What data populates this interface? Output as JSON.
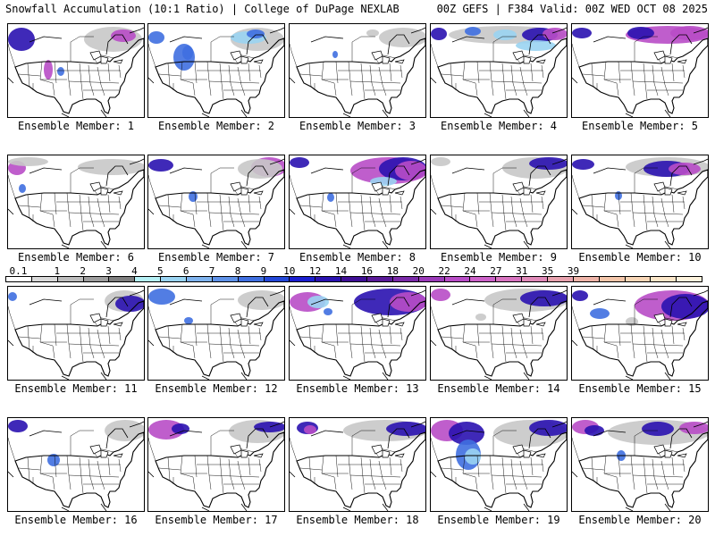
{
  "header": {
    "left": "Snowfall Accumulation (10:1 Ratio) | College of DuPage NEXLAB",
    "right": "00Z GEFS | F384 Valid: 00Z WED OCT 08 2025"
  },
  "colorbar": {
    "ticks": [
      "0.1",
      "1",
      "2",
      "3",
      "4",
      "5",
      "6",
      "7",
      "8",
      "9",
      "10",
      "12",
      "14",
      "16",
      "18",
      "20",
      "22",
      "24",
      "27",
      "31",
      "35",
      "39"
    ],
    "colors": [
      "#ffffff",
      "#d9d9d9",
      "#bdbdbd",
      "#9e9e9e",
      "#7f7f7f",
      "#b5f0f5",
      "#9ad4f2",
      "#7fb3ee",
      "#5f92e8",
      "#3f6fe0",
      "#2347d8",
      "#1b1fd0",
      "#2a12b0",
      "#3f0f95",
      "#5a1a98",
      "#7a2aa8",
      "#9a3ab8",
      "#b84cc6",
      "#cc62c8",
      "#d874c0",
      "#e08ab8",
      "#e8a2ae",
      "#efb4a8",
      "#f4c6aa",
      "#f8d6b6",
      "#fbe6c8",
      "#fdf3dd"
    ]
  },
  "panels": [
    {
      "label": "Ensemble Member: 1",
      "snow": [
        [
          "n",
          0,
          4,
          30,
          26
        ],
        [
          "p",
          40,
          40,
          10,
          22
        ],
        [
          "b",
          55,
          48,
          8,
          10
        ],
        [
          "g",
          85,
          3,
          65,
          28
        ],
        [
          "p",
          115,
          6,
          28,
          14
        ]
      ]
    },
    {
      "label": "Ensemble Member: 2",
      "snow": [
        [
          "b",
          0,
          8,
          18,
          14
        ],
        [
          "b",
          28,
          22,
          24,
          30
        ],
        [
          "b",
          38,
          24,
          12,
          16
        ],
        [
          "g",
          92,
          4,
          60,
          26
        ],
        [
          "c",
          92,
          8,
          40,
          14
        ],
        [
          "b",
          110,
          6,
          20,
          10
        ]
      ]
    },
    {
      "label": "Ensemble Member: 3",
      "snow": [
        [
          "g",
          100,
          4,
          54,
          22
        ],
        [
          "g",
          86,
          6,
          14,
          8
        ],
        [
          "b",
          48,
          30,
          6,
          8
        ]
      ]
    },
    {
      "label": "Ensemble Member: 4",
      "snow": [
        [
          "n",
          0,
          4,
          18,
          14
        ],
        [
          "g",
          20,
          2,
          130,
          20
        ],
        [
          "b",
          38,
          3,
          18,
          10
        ],
        [
          "c",
          70,
          6,
          26,
          12
        ],
        [
          "n",
          102,
          4,
          40,
          16
        ],
        [
          "p",
          125,
          4,
          28,
          14
        ],
        [
          "c",
          95,
          18,
          45,
          12
        ]
      ]
    },
    {
      "label": "Ensemble Member: 5",
      "snow": [
        [
          "n",
          0,
          4,
          22,
          12
        ],
        [
          "p",
          60,
          2,
          94,
          20
        ],
        [
          "n",
          62,
          3,
          30,
          14
        ],
        [
          "p",
          110,
          2,
          44,
          16
        ]
      ]
    },
    {
      "label": "Ensemble Member: 6",
      "snow": [
        [
          "p",
          0,
          6,
          20,
          16
        ],
        [
          "g",
          0,
          2,
          45,
          10
        ],
        [
          "b",
          12,
          32,
          8,
          10
        ],
        [
          "g",
          78,
          4,
          76,
          18
        ]
      ]
    },
    {
      "label": "Ensemble Member: 7",
      "snow": [
        [
          "n",
          0,
          4,
          28,
          14
        ],
        [
          "p",
          115,
          2,
          40,
          22
        ],
        [
          "g",
          100,
          4,
          50,
          22
        ],
        [
          "b",
          45,
          40,
          10,
          12
        ]
      ]
    },
    {
      "label": "Ensemble Member: 8",
      "snow": [
        [
          "n",
          0,
          2,
          22,
          12
        ],
        [
          "p",
          68,
          2,
          86,
          30
        ],
        [
          "n",
          100,
          2,
          54,
          26
        ],
        [
          "p",
          118,
          6,
          36,
          22
        ],
        [
          "c",
          90,
          24,
          30,
          10
        ],
        [
          "b",
          42,
          42,
          8,
          10
        ]
      ]
    },
    {
      "label": "Ensemble Member: 9",
      "snow": [
        [
          "g",
          0,
          2,
          22,
          10
        ],
        [
          "g",
          80,
          2,
          74,
          24
        ],
        [
          "n",
          110,
          2,
          44,
          14
        ]
      ]
    },
    {
      "label": "Ensemble Member: 10",
      "snow": [
        [
          "n",
          0,
          4,
          25,
          12
        ],
        [
          "g",
          60,
          2,
          94,
          22
        ],
        [
          "n",
          80,
          6,
          52,
          18
        ],
        [
          "p",
          108,
          8,
          36,
          14
        ],
        [
          "b",
          48,
          40,
          8,
          10
        ]
      ]
    },
    {
      "label": "Ensemble Member: 11",
      "snow": [
        [
          "b",
          0,
          6,
          10,
          10
        ],
        [
          "g",
          108,
          4,
          44,
          24
        ],
        [
          "n",
          120,
          10,
          34,
          18
        ]
      ]
    },
    {
      "label": "Ensemble Member: 12",
      "snow": [
        [
          "b",
          0,
          2,
          30,
          18
        ],
        [
          "g",
          100,
          4,
          54,
          22
        ],
        [
          "b",
          40,
          34,
          10,
          8
        ]
      ]
    },
    {
      "label": "Ensemble Member: 13",
      "snow": [
        [
          "p",
          0,
          6,
          40,
          22
        ],
        [
          "c",
          20,
          10,
          24,
          14
        ],
        [
          "n",
          72,
          2,
          82,
          30
        ],
        [
          "p",
          112,
          6,
          42,
          22
        ],
        [
          "b",
          38,
          24,
          10,
          8
        ]
      ]
    },
    {
      "label": "Ensemble Member: 14",
      "snow": [
        [
          "p",
          0,
          2,
          22,
          14
        ],
        [
          "g",
          60,
          2,
          94,
          26
        ],
        [
          "n",
          100,
          4,
          54,
          18
        ],
        [
          "g",
          50,
          30,
          12,
          8
        ]
      ]
    },
    {
      "label": "Ensemble Member: 15",
      "snow": [
        [
          "n",
          0,
          4,
          18,
          12
        ],
        [
          "p",
          70,
          4,
          84,
          34
        ],
        [
          "n",
          100,
          8,
          54,
          28
        ],
        [
          "b",
          20,
          24,
          22,
          12
        ],
        [
          "g",
          60,
          34,
          14,
          10
        ]
      ]
    },
    {
      "label": "Ensemble Member: 16",
      "snow": [
        [
          "n",
          0,
          2,
          22,
          14
        ],
        [
          "g",
          108,
          2,
          46,
          24
        ],
        [
          "b",
          44,
          40,
          14,
          14
        ]
      ]
    },
    {
      "label": "Ensemble Member: 17",
      "snow": [
        [
          "p",
          0,
          2,
          40,
          22
        ],
        [
          "n",
          26,
          6,
          20,
          12
        ],
        [
          "g",
          90,
          2,
          64,
          26
        ],
        [
          "n",
          118,
          4,
          36,
          12
        ]
      ]
    },
    {
      "label": "Ensemble Member: 18",
      "snow": [
        [
          "n",
          8,
          4,
          24,
          14
        ],
        [
          "p",
          16,
          8,
          14,
          10
        ],
        [
          "g",
          60,
          2,
          94,
          24
        ],
        [
          "n",
          108,
          4,
          46,
          16
        ]
      ]
    },
    {
      "label": "Ensemble Member: 19",
      "snow": [
        [
          "p",
          0,
          2,
          36,
          24
        ],
        [
          "n",
          20,
          4,
          40,
          26
        ],
        [
          "b",
          28,
          24,
          28,
          34
        ],
        [
          "c",
          38,
          34,
          18,
          18
        ],
        [
          "g",
          70,
          2,
          84,
          30
        ],
        [
          "n",
          110,
          2,
          44,
          18
        ]
      ]
    },
    {
      "label": "Ensemble Member: 20",
      "snow": [
        [
          "p",
          0,
          2,
          30,
          16
        ],
        [
          "n",
          14,
          8,
          22,
          12
        ],
        [
          "g",
          40,
          2,
          114,
          28
        ],
        [
          "n",
          78,
          4,
          36,
          16
        ],
        [
          "p",
          120,
          4,
          34,
          14
        ],
        [
          "b",
          50,
          36,
          10,
          12
        ]
      ]
    }
  ]
}
